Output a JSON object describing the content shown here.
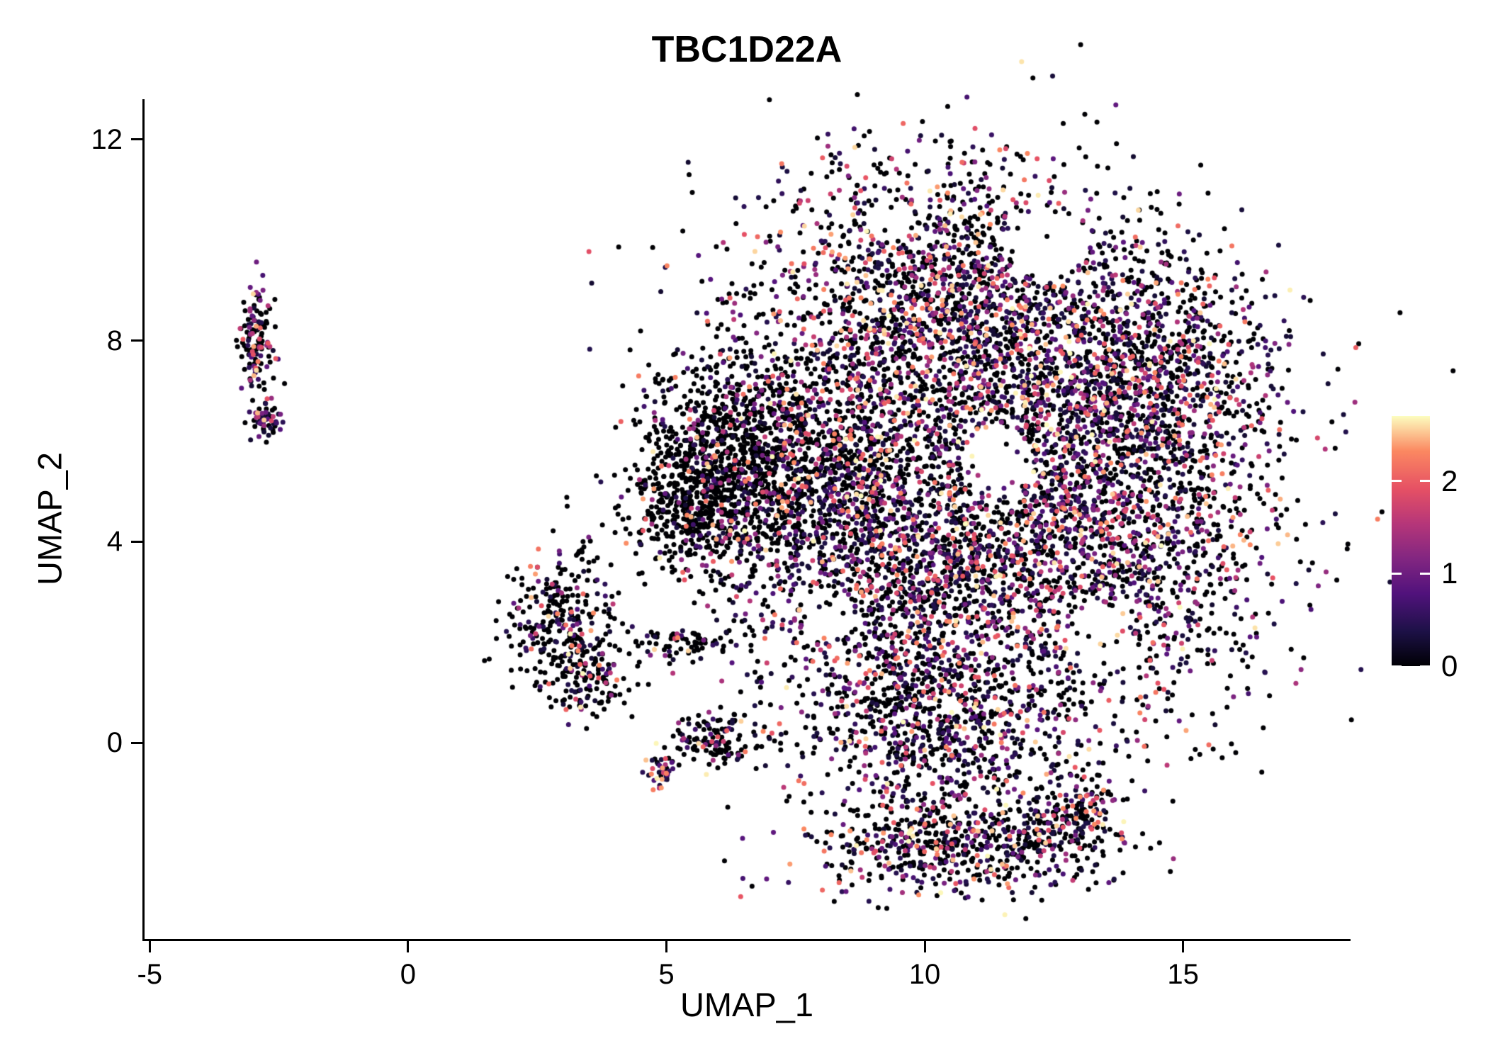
{
  "chart_data": {
    "type": "scatter",
    "title": "TBC1D22A",
    "xlabel": "UMAP_1",
    "ylabel": "UMAP_2",
    "x_ticks": [
      -5,
      0,
      5,
      10,
      15
    ],
    "y_ticks": [
      0,
      4,
      8,
      12
    ],
    "xlim": [
      -5.1,
      18.2
    ],
    "ylim": [
      -3.9,
      12.8
    ],
    "grid": false,
    "legend_position": "right",
    "color_encoding": "expression level",
    "expression_range": [
      0,
      2.7
    ],
    "colorbar_ticks": [
      0,
      1,
      2
    ],
    "colormap": {
      "name": "magma",
      "stops": [
        [
          0.0,
          "#000004"
        ],
        [
          0.14,
          "#1d1147"
        ],
        [
          0.29,
          "#51127c"
        ],
        [
          0.43,
          "#822681"
        ],
        [
          0.57,
          "#b63679"
        ],
        [
          0.71,
          "#e65164"
        ],
        [
          0.86,
          "#fb8861"
        ],
        [
          1.0,
          "#fcfdbf"
        ]
      ]
    },
    "point_radius_px": 3.5,
    "seed": 20240613,
    "clusters": [
      {
        "name": "main-top",
        "n": 2000,
        "cx": 10.3,
        "cy": 8.8,
        "sx": 1.9,
        "sy": 1.5,
        "zero_frac": 0.48,
        "hi_frac": 0.05
      },
      {
        "name": "main-upper-right",
        "n": 900,
        "cx": 14.2,
        "cy": 7.6,
        "sx": 1.3,
        "sy": 1.2,
        "zero_frac": 0.52,
        "hi_frac": 0.03
      },
      {
        "name": "main-right",
        "n": 2400,
        "cx": 13.2,
        "cy": 4.6,
        "sx": 1.8,
        "sy": 2.0,
        "zero_frac": 0.52,
        "hi_frac": 0.03
      },
      {
        "name": "main-center",
        "n": 1800,
        "cx": 9.6,
        "cy": 3.4,
        "sx": 1.5,
        "sy": 2.0,
        "zero_frac": 0.5,
        "hi_frac": 0.04
      },
      {
        "name": "main-left-mid",
        "n": 900,
        "cx": 7.9,
        "cy": 5.4,
        "sx": 1.1,
        "sy": 1.4,
        "zero_frac": 0.6,
        "hi_frac": 0.03
      },
      {
        "name": "left-arm",
        "n": 800,
        "cx": 6.3,
        "cy": 5.6,
        "sx": 0.85,
        "sy": 1.05,
        "zero_frac": 0.82,
        "hi_frac": 0.01
      },
      {
        "name": "left-arm-tip",
        "n": 350,
        "cx": 5.4,
        "cy": 4.7,
        "sx": 0.55,
        "sy": 0.7,
        "zero_frac": 0.85,
        "hi_frac": 0.01
      },
      {
        "name": "bottom-bridge",
        "n": 550,
        "cx": 10.4,
        "cy": 0.3,
        "sx": 1.3,
        "sy": 0.8,
        "zero_frac": 0.55,
        "hi_frac": 0.03
      },
      {
        "name": "bottom-lobe",
        "n": 650,
        "cx": 10.7,
        "cy": -2.0,
        "sx": 1.5,
        "sy": 0.5,
        "zero_frac": 0.55,
        "hi_frac": 0.04
      },
      {
        "name": "bottom-lobe-right",
        "n": 160,
        "cx": 12.9,
        "cy": -1.4,
        "sx": 0.45,
        "sy": 0.4,
        "zero_frac": 0.6,
        "hi_frac": 0.02
      },
      {
        "name": "mid-left",
        "n": 300,
        "cx": 2.9,
        "cy": 2.4,
        "sx": 0.5,
        "sy": 0.7,
        "zero_frac": 0.7,
        "hi_frac": 0.05
      },
      {
        "name": "mid-left-tail",
        "n": 110,
        "cx": 3.5,
        "cy": 1.2,
        "sx": 0.4,
        "sy": 0.35,
        "zero_frac": 0.68,
        "hi_frac": 0.05
      },
      {
        "name": "strip",
        "n": 90,
        "cx": 5.3,
        "cy": 2.0,
        "sx": 0.7,
        "sy": 0.18,
        "zero_frac": 0.8,
        "hi_frac": 0.02
      },
      {
        "name": "small-block",
        "n": 130,
        "cx": 6.0,
        "cy": 0.05,
        "sx": 0.45,
        "sy": 0.28,
        "zero_frac": 0.68,
        "hi_frac": 0.04
      },
      {
        "name": "tiny-dense",
        "n": 45,
        "cx": 4.9,
        "cy": -0.55,
        "sx": 0.14,
        "sy": 0.18,
        "zero_frac": 0.25,
        "hi_frac": 0.3
      },
      {
        "name": "far-left-top",
        "n": 140,
        "cx": -2.95,
        "cy": 8.05,
        "sx": 0.16,
        "sy": 0.55,
        "zero_frac": 0.45,
        "hi_frac": 0.12
      },
      {
        "name": "far-left-bottom",
        "n": 55,
        "cx": -2.72,
        "cy": 6.4,
        "sx": 0.14,
        "sy": 0.22,
        "zero_frac": 0.35,
        "hi_frac": 0.08
      }
    ],
    "voids": [
      {
        "cx": 11.4,
        "cy": 5.6,
        "r": 0.7
      },
      {
        "cx": 12.3,
        "cy": 9.9,
        "r": 0.7
      },
      {
        "cx": 13.4,
        "cy": 2.0,
        "r": 0.65
      },
      {
        "cx": 9.3,
        "cy": 10.4,
        "r": 0.45
      },
      {
        "cx": 8.1,
        "cy": 2.6,
        "r": 0.5
      }
    ]
  }
}
